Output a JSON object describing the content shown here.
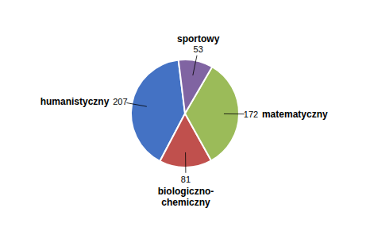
{
  "chart_data": {
    "type": "pie",
    "categories": [
      "humanistyczny",
      "biologiczno-\nchemiczny",
      "matematyczny",
      "sportowy"
    ],
    "values": [
      207,
      81,
      172,
      53
    ],
    "colors": [
      "#4472C4",
      "#C0504D",
      "#9BBB59",
      "#8064A2"
    ],
    "data_labels": true
  }
}
